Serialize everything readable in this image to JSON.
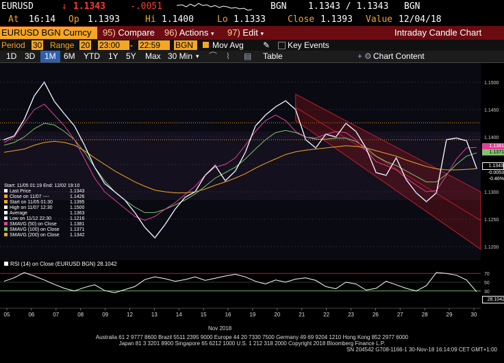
{
  "header": {
    "ticker": "EURUSD",
    "arrow": "↓",
    "last": "1.1343",
    "change": "-.0051",
    "source1": "BGN",
    "bidask": "1.1343 / 1.1343",
    "source2": "BGN",
    "time_label": "At",
    "time": "16:14",
    "open_label": "Op",
    "open": "1.1393",
    "high_label": "Hi",
    "high": "1.1400",
    "low_label": "Lo",
    "low": "1.1333",
    "close_label": "Close",
    "close": "1.1393",
    "value_label": "Value",
    "value": "12/04/18"
  },
  "toolbar": {
    "security": "EURUSD BGN Curncy",
    "compare_num": "95)",
    "compare": "Compare",
    "actions_num": "96)",
    "actions": "Actions",
    "edit_num": "97)",
    "edit": "Edit",
    "title": "Intraday Candle Chart"
  },
  "settings": {
    "period_label": "Period",
    "period": "30",
    "range_label": "Range",
    "range": "20",
    "start_time": "23:00",
    "dash": "-",
    "end_time": "22:59",
    "source": "BGN",
    "mov_avg": "Mov Avg",
    "key_events": "Key Events"
  },
  "ranges": {
    "items": [
      "1D",
      "3D",
      "1M",
      "6M",
      "YTD",
      "1Y",
      "5Y",
      "Max"
    ],
    "selected": "1M",
    "interval": "30 Min",
    "table": "Table",
    "chart_content": "Chart Content"
  },
  "legend": {
    "range_text": "Start: 11/05 01:19 End: 12/02 19:10",
    "items": [
      {
        "label": "Last Price",
        "value": "1.1343",
        "color": "#ffffff"
      },
      {
        "label": "Close on 11/07 ----",
        "value": "1.1426",
        "color": "#f5a623"
      },
      {
        "label": "Start on 11/05 01:30",
        "value": "1.1395",
        "color": "#f5a623"
      },
      {
        "label": "High on 11/07 12:30",
        "value": "1.1500",
        "color": "#ffffff"
      },
      {
        "label": "Average",
        "value": "1.1363",
        "color": "#ffffff"
      },
      {
        "label": "Low on 11/12 22:30",
        "value": "1.1216",
        "color": "#ffffff"
      },
      {
        "label": "SMAVG (50) on Close",
        "value": "1.1381",
        "color": "#e0409a"
      },
      {
        "label": "SMAVG (100) on Close",
        "value": "1.1371",
        "color": "#7fc46a"
      },
      {
        "label": "SMAVG (200) on Close",
        "value": "1.1342",
        "color": "#f5a623"
      }
    ]
  },
  "right_labels": {
    "sma50": "1.1381",
    "sma100": "1.1371",
    "last": "1.1343",
    "chg": "-0.0053",
    "pct": "-0.46%",
    "rsi": "28.1042"
  },
  "rsi_legend": "RSI (14) on Close (EURUSD BGN) 28.1042",
  "month_label": "Nov 2018",
  "footer": {
    "line1": "Australia 61 2 9777 8600 Brazil 5511 2395 9000 Europe 44 20 7330 7500 Germany 49 69 9204 1210 Hong Kong 852 2977 6000",
    "line2": "Japan 81 3 3201 8900          Singapore 65 6212 1000          U.S. 1 212 318 2000                    Copyright 2018 Bloomberg Finance L.P.",
    "line3": "SN 204542 G708-1166-1 30-Nov-18 16:14:09 CET  GMT+1:00"
  },
  "chart_data": [
    {
      "type": "line",
      "title": "Intraday Candle Chart",
      "x_ticks": [
        "05",
        "06",
        "07",
        "08",
        "09",
        "12",
        "13",
        "14",
        "15",
        "16",
        "19",
        "20",
        "21",
        "22",
        "23",
        "26",
        "27",
        "28",
        "29",
        "30"
      ],
      "ylim": [
        1.1185,
        1.1525
      ],
      "y_ticks": [
        1.12,
        1.125,
        1.13,
        1.135,
        1.14,
        1.145,
        1.15
      ],
      "reference_lines": {
        "close_11_07": 1.1426,
        "start_11_05": 1.1395
      },
      "series": [
        {
          "name": "Last Price",
          "color": "#ffffff",
          "values": [
            1.1395,
            1.1402,
            1.1432,
            1.1475,
            1.15,
            1.1465,
            1.1442,
            1.142,
            1.1385,
            1.1345,
            1.1315,
            1.13,
            1.1285,
            1.1262,
            1.1235,
            1.1216,
            1.124,
            1.1268,
            1.129,
            1.13,
            1.133,
            1.1348,
            1.132,
            1.1338,
            1.1372,
            1.142,
            1.144,
            1.1455,
            1.1466,
            1.145,
            1.1395,
            1.138,
            1.1405,
            1.14,
            1.1425,
            1.141,
            1.138,
            1.1335,
            1.133,
            1.1362,
            1.1322,
            1.1298,
            1.1282,
            1.1298,
            1.1395,
            1.1398,
            1.1393,
            1.1343
          ]
        },
        {
          "name": "SMAVG (50) on Close",
          "color": "#e0409a",
          "values": [
            1.139,
            1.14,
            1.1425,
            1.145,
            1.146,
            1.144,
            1.142,
            1.1395,
            1.136,
            1.1325,
            1.13,
            1.1285,
            1.127,
            1.1255,
            1.1248,
            1.1255,
            1.1268,
            1.128,
            1.1295,
            1.131,
            1.133,
            1.1345,
            1.135,
            1.1362,
            1.1385,
            1.141,
            1.143,
            1.144,
            1.143,
            1.141,
            1.14,
            1.1398,
            1.1405,
            1.141,
            1.1408,
            1.1395,
            1.1375,
            1.1355,
            1.1348,
            1.134,
            1.1325,
            1.1312,
            1.13,
            1.1302,
            1.133,
            1.136,
            1.138,
            1.1381
          ]
        },
        {
          "name": "SMAVG (100) on Close",
          "color": "#7fc46a",
          "values": [
            1.1385,
            1.139,
            1.14,
            1.1415,
            1.1425,
            1.1422,
            1.141,
            1.1395,
            1.1372,
            1.1345,
            1.132,
            1.13,
            1.1285,
            1.1272,
            1.1262,
            1.1262,
            1.1268,
            1.1276,
            1.1285,
            1.1296,
            1.131,
            1.1325,
            1.1335,
            1.1345,
            1.136,
            1.1378,
            1.1395,
            1.1408,
            1.1412,
            1.1408,
            1.14,
            1.1396,
            1.1396,
            1.1398,
            1.1398,
            1.1392,
            1.138,
            1.1365,
            1.1355,
            1.1348,
            1.1338,
            1.1328,
            1.1318,
            1.1318,
            1.1332,
            1.135,
            1.1365,
            1.1371
          ]
        },
        {
          "name": "SMAVG (200) on Close",
          "color": "#f5a623",
          "values": [
            1.1372,
            1.1375,
            1.1378,
            1.1385,
            1.139,
            1.1392,
            1.139,
            1.1385,
            1.1375,
            1.1362,
            1.135,
            1.1338,
            1.1328,
            1.1318,
            1.131,
            1.1303,
            1.13,
            1.1298,
            1.1298,
            1.13,
            1.1305,
            1.1312,
            1.1318,
            1.1325,
            1.1333,
            1.1343,
            1.1352,
            1.136,
            1.1368,
            1.1373,
            1.1376,
            1.1378,
            1.138,
            1.1382,
            1.1384,
            1.1383,
            1.138,
            1.1375,
            1.137,
            1.1365,
            1.1358,
            1.1352,
            1.1346,
            1.1342,
            1.134,
            1.134,
            1.1341,
            1.1342
          ]
        }
      ]
    },
    {
      "type": "line",
      "title": "RSI (14) on Close (EURUSD BGN) 28.1042",
      "ylim": [
        0,
        100
      ],
      "y_ticks": [
        30,
        50,
        70
      ],
      "series": [
        {
          "name": "RSI (14) on Close (EURUSD BGN)",
          "color": "#ffffff",
          "values": [
            52,
            60,
            72,
            64,
            55,
            45,
            36,
            30,
            38,
            44,
            31,
            26,
            33,
            40,
            56,
            62,
            58,
            52,
            56,
            62,
            54,
            59,
            64,
            68,
            62,
            52,
            46,
            55,
            50,
            57,
            60,
            54,
            40,
            35,
            50,
            46,
            32,
            36,
            52,
            44,
            36,
            30,
            42,
            72,
            70,
            66,
            55,
            28
          ]
        }
      ]
    }
  ]
}
